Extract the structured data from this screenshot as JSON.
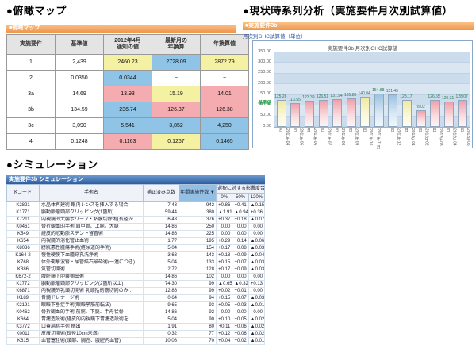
{
  "overview": {
    "title": "●俯瞰マップ",
    "bar_label": "■俯瞰マップ",
    "table": {
      "headers": [
        "実施要件",
        "基準値",
        "2012年4月\n通知の値",
        "最新月の\n年換算",
        "年換算値"
      ],
      "rows": [
        {
          "label": "1",
          "base": "2,439",
          "values": [
            "2460.23",
            "2728.09",
            "2872.79"
          ],
          "colors": [
            "yellow",
            "blue",
            "yellow"
          ]
        },
        {
          "label": "2",
          "base": "0.0350",
          "values": [
            "0.0344",
            "−",
            "−"
          ],
          "colors": [
            "blue",
            "white",
            "white"
          ]
        },
        {
          "label": "3a",
          "base": "14.69",
          "values": [
            "13.93",
            "15.19",
            "14.01"
          ],
          "colors": [
            "pink",
            "yellow",
            "pink"
          ]
        },
        {
          "label": "3b",
          "base": "134.59",
          "values": [
            "236.74",
            "126.37",
            "126.38"
          ],
          "colors": [
            "blue",
            "pink",
            "pink"
          ]
        },
        {
          "label": "3c",
          "base": "3,090",
          "values": [
            "5,541",
            "3,852",
            "4,250"
          ],
          "colors": [
            "blue",
            "blue",
            "blue"
          ]
        },
        {
          "label": "4",
          "base": "0.1248",
          "values": [
            "0.1163",
            "0.1267",
            "0.1465"
          ],
          "colors": [
            "pink",
            "yellow",
            "blue"
          ]
        }
      ]
    }
  },
  "timeseries": {
    "title": "●現状時系列分析（実施要件月次別試算値）",
    "bar_label": "■実施要件3b",
    "subtitle": "月次別GHC試算値（単位）",
    "chart_data": {
      "type": "bar",
      "title": "実施要件3b 月次別GHC試算値",
      "categories": [
        "2011年04月",
        "2011年05月",
        "2011年06月",
        "2011年07月",
        "2011年08月",
        "2011年09月",
        "2011年10月",
        "2011年11月",
        "2011年12月",
        "2012年01月",
        "2012年02月",
        "2012年03月",
        "2012年04月",
        "2012年05月"
      ],
      "values": [
        125.26,
        113.55,
        123.39,
        126.51,
        131.94,
        135.88,
        140.04,
        154.88,
        151.45,
        128.17,
        78.02,
        126.55,
        120.21,
        128.07
      ],
      "bar_colors": [
        "yellow",
        "pink",
        "pink",
        "pink",
        "pink",
        "pink",
        "yellow",
        "blue",
        "blue",
        "yellow",
        "pink",
        "pink",
        "pink",
        "pink"
      ],
      "xlabel": "",
      "ylabel": "",
      "ylim": [
        0,
        350
      ],
      "ytick_step": 50,
      "grid": true,
      "reference_line": {
        "value": 134.59,
        "label": "基準値",
        "color": "#1FA04A"
      },
      "palette": {
        "pink": "#EFA0AA",
        "yellow": "#EFEA9E",
        "blue": "#9CC2E2"
      }
    }
  },
  "simulation": {
    "title": "●シミュレーション",
    "bar_label": "実施要件3b シミュレーション",
    "table": {
      "headers": {
        "code": "Kコード",
        "name": "手術名",
        "points": "補正済み点数",
        "count": "年間実施件数",
        "sort_icon": "▼",
        "impact": "選択に対する影響度合",
        "impact_cols": [
          "0%",
          "50%",
          "120%"
        ]
      },
      "rows": [
        [
          "K2821",
          "水晶体再建術 眼内レンズを挿入する場合",
          "7.43",
          "942",
          "+0.86",
          "+0.41",
          "▲0.15"
        ],
        [
          "K1771",
          "脳動脈瘤頸部クリッピング(1箇所)",
          "59.44",
          "380",
          "▲1.91",
          "▲0.94",
          "+0.36"
        ],
        [
          "K7211",
          "内視鏡的大腸ポリープ・粘膜切除術(長径2c…",
          "6.43",
          "376",
          "+0.37",
          "+0.18",
          "▲0.07"
        ],
        [
          "K0461",
          "骨折観血的手術 肩甲骨、上腕、大腿",
          "14.86",
          "250",
          "0.00",
          "0.00",
          "0.00"
        ],
        [
          "K549",
          "経皮的冠動脈ステント留置術",
          "14.86",
          "225",
          "0.00",
          "0.00",
          "0.00"
        ],
        [
          "K654",
          "内視鏡的消化管止血術",
          "1.77",
          "195",
          "+0.29",
          "+0.14",
          "▲0.06"
        ],
        [
          "K8036",
          "膀胱悪性腫瘍手術(経尿道的手術)",
          "5.04",
          "154",
          "+0.17",
          "+0.08",
          "▲0.03"
        ],
        [
          "K164-2",
          "慢性硬膜下血腫穿孔洗浄術",
          "3.63",
          "143",
          "+0.18",
          "+0.09",
          "▲0.04"
        ],
        [
          "K768",
          "体外衝撃波腎・尿管結石破砕術(一連につき)",
          "5.04",
          "133",
          "+0.15",
          "+0.07",
          "▲0.03"
        ],
        [
          "K386",
          "気管切開術",
          "2.72",
          "128",
          "+0.17",
          "+0.09",
          "▲0.03"
        ],
        [
          "K672-2",
          "腹腔鏡下胆嚢摘出術",
          "14.86",
          "102",
          "0.00",
          "0.00",
          "0.00"
        ],
        [
          "K1772",
          "脳動脈瘤頸部クリッピング(2箇所以上)",
          "74.30",
          "99",
          "▲0.65",
          "▲0.32",
          "+0.13"
        ],
        [
          "K6871",
          "内視鏡的乳頭切開術 乳頭括約筋切開のみ…",
          "12.86",
          "99",
          "+0.02",
          "+0.01",
          "0.00"
        ],
        [
          "K189",
          "脊髄ドレナージ術",
          "0.64",
          "94",
          "+0.15",
          "+0.07",
          "▲0.03"
        ],
        [
          "K2191",
          "眼瞼下垂症手術(眼瞼挙筋前転法)",
          "9.65",
          "93",
          "+0.05",
          "+0.03",
          "▲0.01"
        ],
        [
          "K0462",
          "骨折観血的手術 前腕、下腿、手舟状骨",
          "14.86",
          "92",
          "0.00",
          "0.00",
          "0.00"
        ],
        [
          "K664",
          "胃瘻造設術(経皮的内視鏡下胃瘻造設術を…",
          "5.04",
          "90",
          "+0.10",
          "+0.05",
          "▲0.02"
        ],
        [
          "K3772",
          "口蓋扁桃手術 摘出",
          "1.91",
          "80",
          "+0.11",
          "+0.06",
          "▲0.02"
        ],
        [
          "K0011",
          "皮膚切開術(長径10cm未満)",
          "0.32",
          "77",
          "+0.12",
          "+0.06",
          "▲0.02"
        ],
        [
          "K615",
          "血管塞栓術(頭部、胸腔、腹腔内血管)",
          "10.08",
          "70",
          "+0.04",
          "+0.02",
          "▲0.01"
        ]
      ]
    }
  }
}
